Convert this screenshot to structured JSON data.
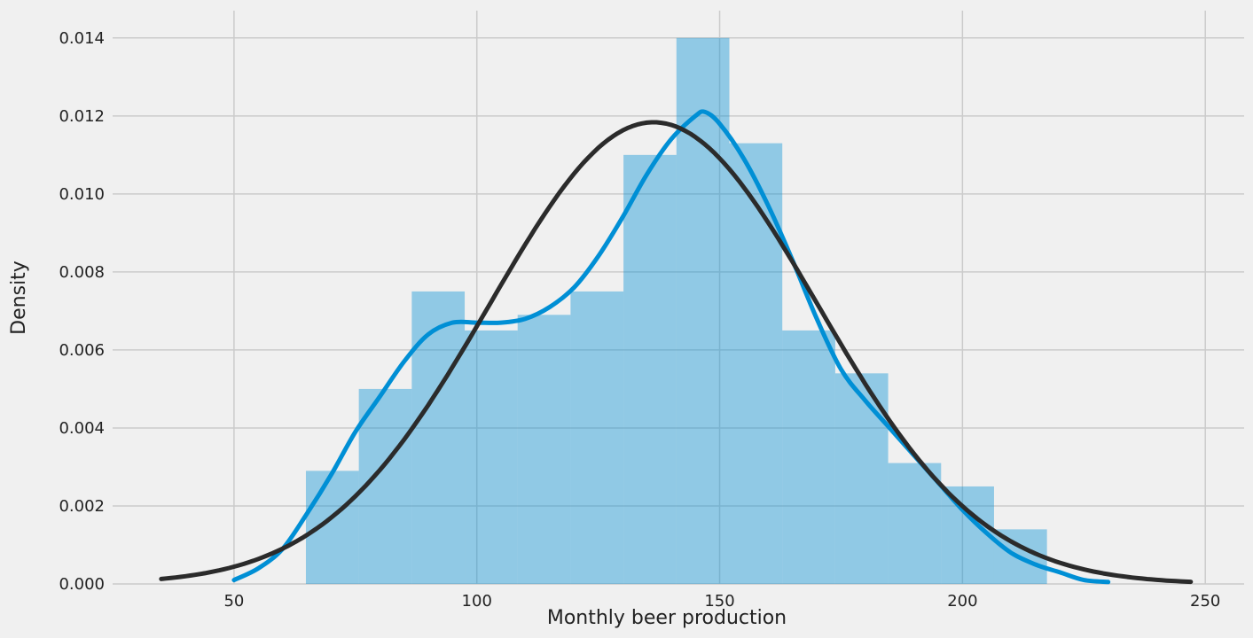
{
  "chart_data": {
    "type": "histogram",
    "title": "",
    "xlabel": "Monthly beer production",
    "ylabel": "Density",
    "xlim": [
      25.0,
      258.0
    ],
    "ylim": [
      0.0,
      0.0147
    ],
    "xticks": [
      50,
      100,
      150,
      200,
      250
    ],
    "yticks": [
      0.0,
      0.002,
      0.004,
      0.006,
      0.008,
      0.01,
      0.012,
      0.014
    ],
    "ytick_labels": [
      "0.000",
      "0.002",
      "0.004",
      "0.006",
      "0.008",
      "0.010",
      "0.012",
      "0.014"
    ],
    "grid": true,
    "bins": [
      {
        "x0": 64.8,
        "x1": 75.7,
        "density": 0.0029
      },
      {
        "x0": 75.7,
        "x1": 86.6,
        "density": 0.005
      },
      {
        "x0": 86.6,
        "x1": 97.5,
        "density": 0.0075
      },
      {
        "x0": 97.5,
        "x1": 108.4,
        "density": 0.0065
      },
      {
        "x0": 108.4,
        "x1": 119.3,
        "density": 0.0069
      },
      {
        "x0": 119.3,
        "x1": 130.2,
        "density": 0.0075
      },
      {
        "x0": 130.2,
        "x1": 141.1,
        "density": 0.011
      },
      {
        "x0": 141.1,
        "x1": 152.0,
        "density": 0.014
      },
      {
        "x0": 152.0,
        "x1": 162.9,
        "density": 0.0113
      },
      {
        "x0": 162.9,
        "x1": 173.8,
        "density": 0.0065
      },
      {
        "x0": 173.8,
        "x1": 184.7,
        "density": 0.0054
      },
      {
        "x0": 184.7,
        "x1": 195.6,
        "density": 0.0031
      },
      {
        "x0": 195.6,
        "x1": 206.5,
        "density": 0.0025
      },
      {
        "x0": 206.5,
        "x1": 217.4,
        "density": 0.0014
      }
    ],
    "kde_curve": {
      "x": [
        50,
        55,
        60,
        65,
        70,
        75,
        80,
        85,
        90,
        95,
        100,
        105,
        110,
        115,
        120,
        125,
        130,
        135,
        140,
        145,
        147,
        150,
        155,
        160,
        165,
        170,
        175,
        180,
        185,
        190,
        195,
        200,
        205,
        210,
        215,
        220,
        225,
        230
      ],
      "y": [
        0.0001,
        0.0004,
        0.0009,
        0.0018,
        0.0028,
        0.0039,
        0.0048,
        0.0057,
        0.0064,
        0.0067,
        0.0067,
        0.0067,
        0.0068,
        0.0071,
        0.0076,
        0.0084,
        0.0094,
        0.0105,
        0.0114,
        0.012,
        0.0121,
        0.0118,
        0.0109,
        0.0097,
        0.0083,
        0.0068,
        0.0055,
        0.0047,
        0.004,
        0.0033,
        0.0026,
        0.0019,
        0.0013,
        0.0008,
        0.0005,
        0.0003,
        0.0001,
        5e-05
      ]
    },
    "normal_fit": {
      "mean": 136.4,
      "std": 33.7,
      "x_range": [
        35.0,
        247.0
      ]
    },
    "colors": {
      "background": "#f0f0f0",
      "grid": "#cbcbcb",
      "bars": "#008fd5",
      "bar_opacity": 0.4,
      "kde": "#008fd5",
      "normal_fit": "#2b2b2b",
      "text": "#222222"
    }
  }
}
